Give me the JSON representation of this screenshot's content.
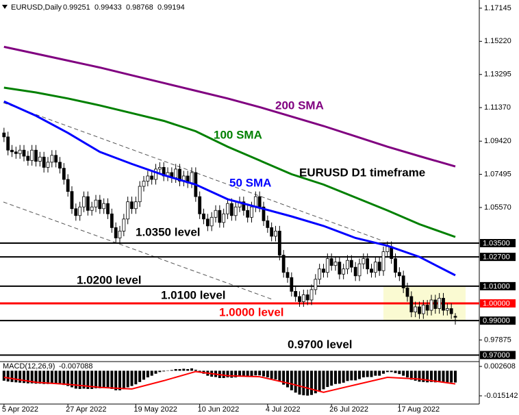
{
  "chart_data": [
    {
      "type": "candlestick",
      "title": "EURUSD,Daily",
      "candles": [
        [
          1.099,
          1.102,
          1.0937,
          1.0967
        ],
        [
          1.0967,
          1.0997,
          1.086,
          1.089
        ],
        [
          1.089,
          1.092,
          1.085,
          1.088
        ],
        [
          1.088,
          1.091,
          1.084,
          1.087
        ],
        [
          1.087,
          1.092,
          1.084,
          1.089
        ],
        [
          1.089,
          1.092,
          1.0825,
          1.0855
        ],
        [
          1.0855,
          1.0885,
          1.08,
          1.083
        ],
        [
          1.083,
          1.092,
          1.08,
          1.089
        ],
        [
          1.089,
          1.092,
          1.0795,
          1.0825
        ],
        [
          1.0825,
          1.088,
          1.0795,
          1.085
        ],
        [
          1.085,
          1.088,
          1.076,
          1.079
        ],
        [
          1.079,
          1.085,
          1.076,
          1.082
        ],
        [
          1.082,
          1.089,
          1.079,
          1.086
        ],
        [
          1.086,
          1.089,
          1.079,
          1.082
        ],
        [
          1.082,
          1.085,
          1.0755,
          1.0785
        ],
        [
          1.0785,
          1.0815,
          1.069,
          1.072
        ],
        [
          1.072,
          1.075,
          1.062,
          1.065
        ],
        [
          1.065,
          1.068,
          1.052,
          1.055
        ],
        [
          1.055,
          1.058,
          1.048,
          1.051
        ],
        [
          1.051,
          1.059,
          1.048,
          1.056
        ],
        [
          1.056,
          1.065,
          1.053,
          1.062
        ],
        [
          1.062,
          1.065,
          1.051,
          1.054
        ],
        [
          1.054,
          1.059,
          1.051,
          1.056
        ],
        [
          1.056,
          1.063,
          1.053,
          1.06
        ],
        [
          1.06,
          1.063,
          1.052,
          1.055
        ],
        [
          1.055,
          1.061,
          1.052,
          1.058
        ],
        [
          1.058,
          1.061,
          1.049,
          1.052
        ],
        [
          1.052,
          1.055,
          1.041,
          1.044
        ],
        [
          1.044,
          1.047,
          1.035,
          1.038
        ],
        [
          1.038,
          1.045,
          1.035,
          1.042
        ],
        [
          1.042,
          1.052,
          1.039,
          1.049
        ],
        [
          1.049,
          1.062,
          1.046,
          1.059
        ],
        [
          1.059,
          1.062,
          1.052,
          1.055
        ],
        [
          1.055,
          1.062,
          1.052,
          1.059
        ],
        [
          1.059,
          1.071,
          1.056,
          1.068
        ],
        [
          1.068,
          1.074,
          1.065,
          1.071
        ],
        [
          1.071,
          1.077,
          1.068,
          1.074
        ],
        [
          1.074,
          1.077,
          1.069,
          1.072
        ],
        [
          1.072,
          1.081,
          1.069,
          1.078
        ],
        [
          1.078,
          1.082,
          1.075,
          1.079
        ],
        [
          1.079,
          1.082,
          1.071,
          1.074
        ],
        [
          1.074,
          1.079,
          1.071,
          1.076
        ],
        [
          1.076,
          1.079,
          1.07,
          1.073
        ],
        [
          1.073,
          1.081,
          1.07,
          1.078
        ],
        [
          1.078,
          1.081,
          1.068,
          1.071
        ],
        [
          1.071,
          1.077,
          1.068,
          1.074
        ],
        [
          1.074,
          1.077,
          1.067,
          1.07
        ],
        [
          1.07,
          1.079,
          1.067,
          1.076
        ],
        [
          1.076,
          1.079,
          1.059,
          1.062
        ],
        [
          1.062,
          1.065,
          1.049,
          1.052
        ],
        [
          1.052,
          1.055,
          1.046,
          1.049
        ],
        [
          1.049,
          1.052,
          1.042,
          1.045
        ],
        [
          1.045,
          1.053,
          1.042,
          1.05
        ],
        [
          1.05,
          1.057,
          1.047,
          1.054
        ],
        [
          1.054,
          1.057,
          1.044,
          1.047
        ],
        [
          1.047,
          1.055,
          1.044,
          1.052
        ],
        [
          1.052,
          1.061,
          1.049,
          1.058
        ],
        [
          1.058,
          1.061,
          1.048,
          1.051
        ],
        [
          1.051,
          1.059,
          1.048,
          1.056
        ],
        [
          1.056,
          1.062,
          1.053,
          1.059
        ],
        [
          1.059,
          1.062,
          1.051,
          1.054
        ],
        [
          1.054,
          1.057,
          1.047,
          1.05
        ],
        [
          1.05,
          1.059,
          1.047,
          1.056
        ],
        [
          1.056,
          1.065,
          1.053,
          1.062
        ],
        [
          1.062,
          1.065,
          1.053,
          1.056
        ],
        [
          1.056,
          1.059,
          1.045,
          1.048
        ],
        [
          1.048,
          1.051,
          1.041,
          1.044
        ],
        [
          1.044,
          1.047,
          1.036,
          1.039
        ],
        [
          1.039,
          1.045,
          1.036,
          1.042
        ],
        [
          1.042,
          1.045,
          1.025,
          1.028
        ],
        [
          1.028,
          1.031,
          1.015,
          1.018
        ],
        [
          1.018,
          1.021,
          1.012,
          1.015
        ],
        [
          1.015,
          1.018,
          1.004,
          1.007
        ],
        [
          1.007,
          1.01,
          1.001,
          1.004
        ],
        [
          1.004,
          1.007,
          0.998,
          1.001
        ],
        [
          1.001,
          1.008,
          0.998,
          1.005
        ],
        [
          1.005,
          1.008,
          0.999,
          1.002
        ],
        [
          1.002,
          1.011,
          0.999,
          1.008
        ],
        [
          1.008,
          1.017,
          1.005,
          1.014
        ],
        [
          1.014,
          1.023,
          1.011,
          1.02
        ],
        [
          1.02,
          1.023,
          1.015,
          1.018
        ],
        [
          1.018,
          1.029,
          1.015,
          1.026
        ],
        [
          1.026,
          1.029,
          1.019,
          1.022
        ],
        [
          1.022,
          1.027,
          1.019,
          1.024
        ],
        [
          1.024,
          1.027,
          1.014,
          1.017
        ],
        [
          1.017,
          1.023,
          1.014,
          1.02
        ],
        [
          1.02,
          1.028,
          1.017,
          1.025
        ],
        [
          1.025,
          1.028,
          1.018,
          1.021
        ],
        [
          1.021,
          1.024,
          1.013,
          1.016
        ],
        [
          1.016,
          1.026,
          1.013,
          1.023
        ],
        [
          1.023,
          1.029,
          1.02,
          1.026
        ],
        [
          1.026,
          1.029,
          1.017,
          1.02
        ],
        [
          1.02,
          1.023,
          1.015,
          1.018
        ],
        [
          1.018,
          1.027,
          1.015,
          1.024
        ],
        [
          1.024,
          1.027,
          1.016,
          1.019
        ],
        [
          1.019,
          1.033,
          1.016,
          1.03
        ],
        [
          1.03,
          1.036,
          1.027,
          1.033
        ],
        [
          1.033,
          1.036,
          1.023,
          1.026
        ],
        [
          1.026,
          1.029,
          1.015,
          1.018
        ],
        [
          1.018,
          1.021,
          1.013,
          1.016
        ],
        [
          1.016,
          1.019,
          1.006,
          1.009
        ],
        [
          1.009,
          1.012,
          1.001,
          1.004
        ],
        [
          1.004,
          1.007,
          0.992,
          0.995
        ],
        [
          0.995,
          1.001,
          0.992,
          0.998
        ],
        [
          0.998,
          1.001,
          0.991,
          0.994
        ],
        [
          0.994,
          1.002,
          0.991,
          0.999
        ],
        [
          0.999,
          1.002,
          0.993,
          0.996
        ],
        [
          0.996,
          1.005,
          0.993,
          1.002
        ],
        [
          1.002,
          1.005,
          0.994,
          0.997
        ],
        [
          0.997,
          1.006,
          0.994,
          1.003
        ],
        [
          1.003,
          1.006,
          0.993,
          0.996
        ],
        [
          0.996,
          1.0,
          0.993,
          0.997
        ],
        [
          0.997,
          1.0,
          0.991,
          0.994
        ],
        [
          0.99251,
          0.99433,
          0.98768,
          0.99194
        ]
      ],
      "series": [
        {
          "name": "200 SMA",
          "color": "#800080",
          "x": [
            0,
            8,
            16,
            24,
            32,
            40,
            48,
            56,
            64,
            72,
            80,
            88,
            96,
            104,
            113
          ],
          "values": [
            1.149,
            1.145,
            1.141,
            1.137,
            1.1325,
            1.128,
            1.1235,
            1.119,
            1.114,
            1.1085,
            1.103,
            1.097,
            1.091,
            1.0855,
            1.0795
          ]
        },
        {
          "name": "100 SMA",
          "color": "#008000",
          "x": [
            0,
            8,
            16,
            24,
            32,
            40,
            48,
            56,
            64,
            72,
            80,
            88,
            96,
            104,
            113
          ],
          "values": [
            1.1253,
            1.1225,
            1.119,
            1.115,
            1.1105,
            1.106,
            1.1,
            1.091,
            1.083,
            1.075,
            1.069,
            1.0615,
            1.054,
            1.046,
            1.0386
          ]
        },
        {
          "name": "50 SMA",
          "color": "#0000ff",
          "x": [
            0,
            8,
            16,
            24,
            32,
            40,
            48,
            56,
            64,
            72,
            80,
            88,
            96,
            104,
            113
          ],
          "values": [
            1.1173,
            1.109,
            1.099,
            1.088,
            1.081,
            1.0745,
            1.069,
            1.0605,
            1.0555,
            1.0505,
            1.045,
            1.038,
            1.0335,
            1.027,
            1.0163
          ]
        }
      ],
      "levels": [
        {
          "value": 1.035,
          "label": "1.03500",
          "color": "#000000"
        },
        {
          "value": 1.027,
          "label": "1.02700",
          "color": "#000000"
        },
        {
          "value": 1.01,
          "label": "1.01000",
          "color": "#000000"
        },
        {
          "value": 1.0,
          "label": "1.00000",
          "color": "#ff0000"
        },
        {
          "value": 0.99,
          "label": "0.99000",
          "color": "#000000"
        },
        {
          "value": 0.97,
          "label": "0.97000",
          "color": "#000000"
        }
      ],
      "annotations": [
        "1.0350 level",
        "1.0200 level",
        "1.0100 level",
        "1.0000 level",
        "0.9700 level",
        "EURUSD D1 timeframe"
      ],
      "ylim": [
        0.9666,
        1.1762
      ],
      "yticks": [
        {
          "value": 1.17145,
          "label": "1.17145"
        },
        {
          "value": 1.1522,
          "label": "1.15220"
        },
        {
          "value": 1.13295,
          "label": "1.13295"
        },
        {
          "value": 1.1137,
          "label": "1.11370"
        },
        {
          "value": 1.0942,
          "label": "1.09420"
        },
        {
          "value": 1.07495,
          "label": "1.07495"
        },
        {
          "value": 1.0557,
          "label": "1.05570"
        },
        {
          "value": 0.97875,
          "label": "0.97875"
        }
      ],
      "xlim": [
        -1,
        119
      ],
      "xticks": [
        {
          "value": 0,
          "label": "5 Apr 2022"
        },
        {
          "value": 16,
          "label": "27 Apr 2022"
        },
        {
          "value": 33,
          "label": "19 May 2022"
        },
        {
          "value": 49,
          "label": "10 Jun 2022"
        },
        {
          "value": 66,
          "label": "4 Jul 2022"
        },
        {
          "value": 82,
          "label": "26 Jul 2022"
        },
        {
          "value": 99,
          "label": "17 Aug 2022"
        }
      ]
    },
    {
      "type": "macd",
      "title": "MACD(12,26,9)",
      "color": "#000000",
      "values": [
        -0.006,
        -0.0065,
        -0.0068,
        -0.007,
        -0.0072,
        -0.0074,
        -0.0076,
        -0.0076,
        -0.0078,
        -0.0078,
        -0.008,
        -0.008,
        -0.0079,
        -0.008,
        -0.0082,
        -0.0086,
        -0.0092,
        -0.01,
        -0.0108,
        -0.011,
        -0.0108,
        -0.011,
        -0.011,
        -0.0106,
        -0.0106,
        -0.0103,
        -0.0104,
        -0.011,
        -0.0118,
        -0.0118,
        -0.0112,
        -0.01,
        -0.0092,
        -0.0082,
        -0.0068,
        -0.0054,
        -0.004,
        -0.003,
        -0.0018,
        -0.0008,
        -0.0004,
        0.0002,
        0.0004,
        0.001,
        0.001,
        0.0012,
        0.001,
        0.0014,
        0.0006,
        -0.0006,
        -0.0018,
        -0.003,
        -0.0036,
        -0.0038,
        -0.0044,
        -0.0044,
        -0.004,
        -0.0042,
        -0.004,
        -0.0036,
        -0.0036,
        -0.0038,
        -0.0034,
        -0.0028,
        -0.0028,
        -0.0034,
        -0.004,
        -0.0048,
        -0.0052,
        -0.0066,
        -0.0084,
        -0.01,
        -0.0118,
        -0.0132,
        -0.0144,
        -0.0148,
        -0.015,
        -0.0146,
        -0.0136,
        -0.0122,
        -0.0112,
        -0.0098,
        -0.009,
        -0.008,
        -0.0078,
        -0.0072,
        -0.0062,
        -0.0058,
        -0.0058,
        -0.005,
        -0.004,
        -0.0038,
        -0.0038,
        -0.003,
        -0.003,
        -0.0018,
        -0.0008,
        -0.0008,
        -0.0014,
        -0.002,
        -0.003,
        -0.004,
        -0.0054,
        -0.006,
        -0.0066,
        -0.0068,
        -0.007,
        -0.0068,
        -0.007,
        -0.0068,
        -0.007,
        -0.007,
        -0.0071,
        -0.007088
      ],
      "signal": {
        "color": "#ff0000",
        "x": [
          0,
          8,
          16,
          24,
          32,
          40,
          48,
          56,
          64,
          72,
          80,
          88,
          96,
          104,
          113
        ],
        "values": [
          -0.004,
          -0.007,
          -0.0082,
          -0.01,
          -0.011,
          -0.006,
          -0.0005,
          -0.003,
          -0.0036,
          -0.008,
          -0.013,
          -0.0085,
          -0.004,
          -0.005,
          -0.007946
        ]
      },
      "ylim": [
        -0.0201,
        0.0047
      ],
      "yticks": [
        0.002608,
        -0.015142
      ]
    }
  ]
}
